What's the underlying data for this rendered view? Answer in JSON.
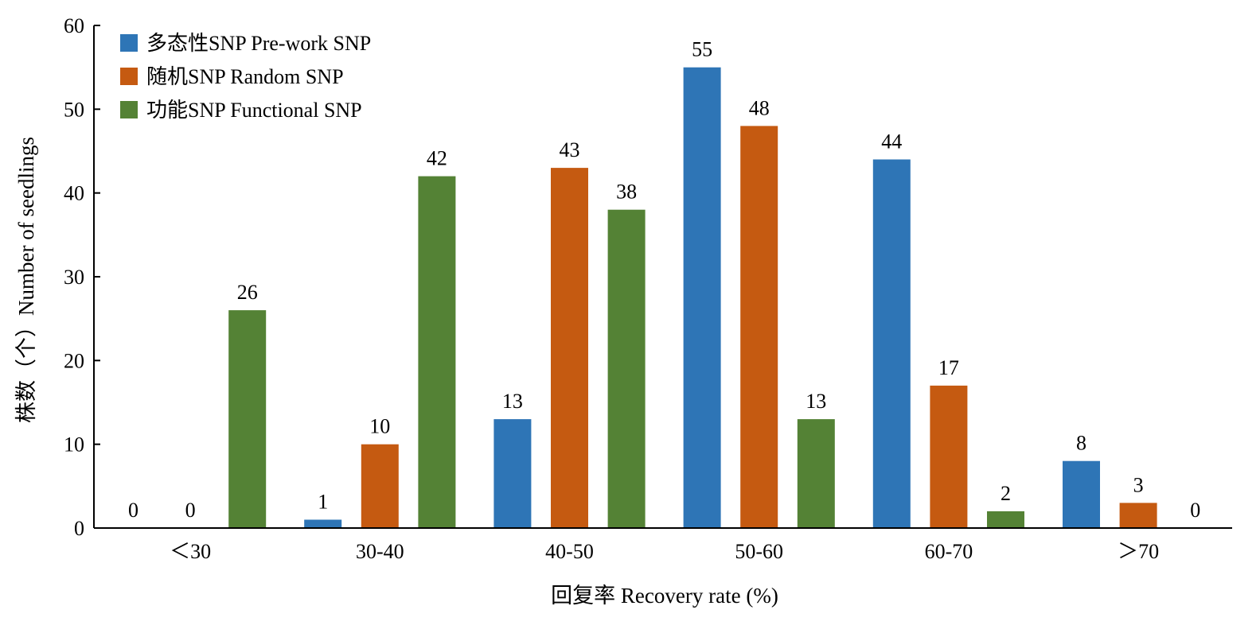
{
  "chart_data": {
    "type": "bar",
    "categories": [
      "＜30",
      "30-40",
      "40-50",
      "50-60",
      "60-70",
      "＞70"
    ],
    "series": [
      {
        "name": "多态性SNP Pre-work SNP",
        "color": "#2E75B6",
        "values": [
          0,
          1,
          13,
          55,
          44,
          8
        ]
      },
      {
        "name": "随机SNP Random SNP",
        "color": "#C55A11",
        "values": [
          0,
          10,
          43,
          48,
          17,
          3
        ]
      },
      {
        "name": "功能SNP Functional SNP",
        "color": "#548235",
        "values": [
          26,
          42,
          38,
          13,
          2,
          0
        ]
      }
    ],
    "xlabel": "回复率 Recovery rate (%)",
    "ylabel": "株数（个）Number of seedlings",
    "ylim": [
      0,
      60
    ],
    "yticks": [
      0,
      10,
      20,
      30,
      40,
      50,
      60
    ],
    "legend_position": "top-left",
    "grid": false
  }
}
